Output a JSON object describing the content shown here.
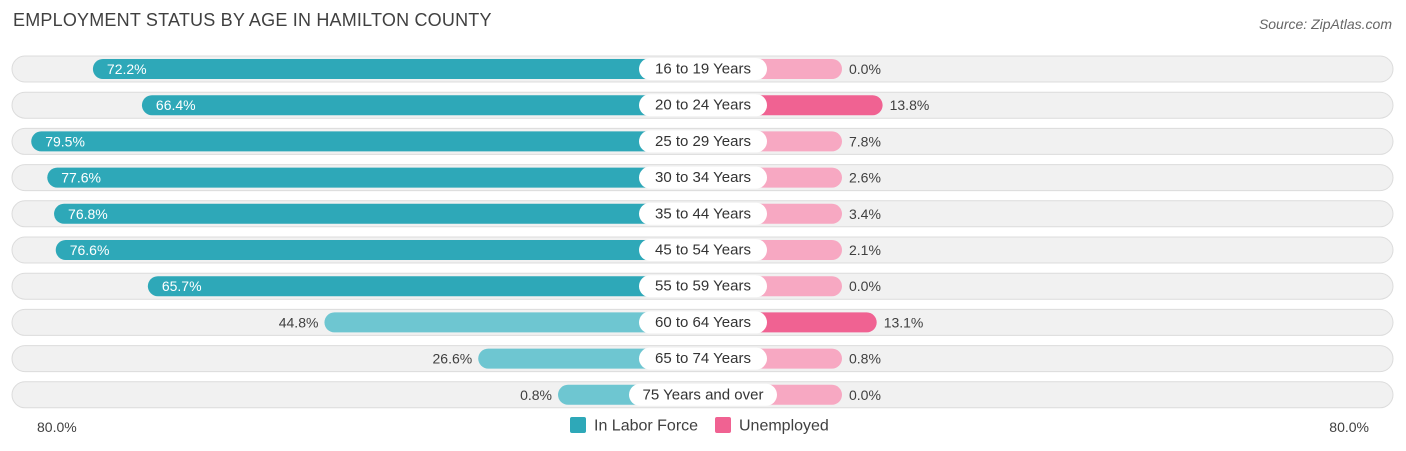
{
  "title": "EMPLOYMENT STATUS BY AGE IN HAMILTON COUNTY",
  "source": "Source: ZipAtlas.com",
  "chart_data": {
    "type": "bar",
    "orientation": "horizontal-diverging",
    "title": "EMPLOYMENT STATUS BY AGE IN HAMILTON COUNTY",
    "categories": [
      "16 to 19 Years",
      "20 to 24 Years",
      "25 to 29 Years",
      "30 to 34 Years",
      "35 to 44 Years",
      "45 to 54 Years",
      "55 to 59 Years",
      "60 to 64 Years",
      "65 to 74 Years",
      "75 Years and over"
    ],
    "series": [
      {
        "name": "In Labor Force",
        "side": "left",
        "color": "#2ea8b8",
        "color_light": "#6ec6d1",
        "values": [
          72.2,
          66.4,
          79.5,
          77.6,
          76.8,
          76.6,
          65.7,
          44.8,
          26.6,
          0.8
        ],
        "labels": [
          "72.2%",
          "66.4%",
          "79.5%",
          "77.6%",
          "76.8%",
          "76.6%",
          "65.7%",
          "44.8%",
          "26.6%",
          "0.8%"
        ]
      },
      {
        "name": "Unemployed",
        "side": "right",
        "color": "#f06292",
        "color_light": "#f7a8c2",
        "values": [
          0.0,
          13.8,
          7.8,
          2.6,
          3.4,
          2.1,
          0.0,
          13.1,
          0.8,
          0.0
        ],
        "labels": [
          "0.0%",
          "13.8%",
          "7.8%",
          "2.6%",
          "3.4%",
          "2.1%",
          "0.0%",
          "13.1%",
          "0.8%",
          "0.0%"
        ]
      }
    ],
    "axis_min_label": "80.0%",
    "axis_max_label": "80.0%",
    "xlim": [
      -80,
      80
    ],
    "legend": [
      "In Labor Force",
      "Unemployed"
    ],
    "legend_position": "bottom-center"
  }
}
